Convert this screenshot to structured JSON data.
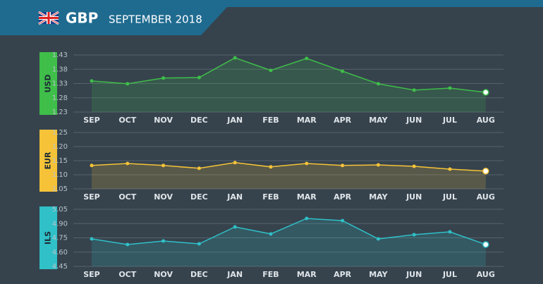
{
  "header": {
    "currency": "GBP",
    "date": "SEPTEMBER 2018"
  },
  "chart_data": [
    {
      "type": "line",
      "y_label": "USD",
      "color": "#3fbe4a",
      "categories": [
        "SEP",
        "OCT",
        "NOV",
        "DEC",
        "JAN",
        "FEB",
        "MAR",
        "APR",
        "MAY",
        "JUN",
        "JUL",
        "AUG"
      ],
      "values": [
        1.339,
        1.329,
        1.349,
        1.351,
        1.42,
        1.376,
        1.418,
        1.373,
        1.329,
        1.307,
        1.314,
        1.299
      ],
      "ylim": [
        1.23,
        1.43
      ],
      "yticks": [
        1.23,
        1.28,
        1.33,
        1.38,
        1.43
      ],
      "grid": true
    },
    {
      "type": "line",
      "y_label": "EUR",
      "color": "#f6c338",
      "categories": [
        "SEP",
        "OCT",
        "NOV",
        "DEC",
        "JAN",
        "FEB",
        "MAR",
        "APR",
        "MAY",
        "JUN",
        "JUL",
        "AUG"
      ],
      "values": [
        1.133,
        1.14,
        1.133,
        1.123,
        1.143,
        1.128,
        1.14,
        1.133,
        1.135,
        1.13,
        1.12,
        1.113
      ],
      "ylim": [
        1.05,
        1.25
      ],
      "yticks": [
        1.05,
        {
          "value": 1.1,
          "label": "1.10"
        },
        1.15,
        {
          "value": 1.2,
          "label": "1.20"
        },
        1.25
      ],
      "grid": true
    },
    {
      "type": "line",
      "y_label": "ILS",
      "color": "#2fc0c8",
      "categories": [
        "SEP",
        "OCT",
        "NOV",
        "DEC",
        "JAN",
        "FEB",
        "MAR",
        "APR",
        "MAY",
        "JUN",
        "JUL",
        "AUG"
      ],
      "values": [
        4.739,
        4.68,
        4.717,
        4.687,
        4.865,
        4.791,
        4.954,
        4.931,
        4.739,
        4.783,
        4.813,
        4.68
      ],
      "ylim": [
        4.45,
        5.05
      ],
      "yticks": [
        4.45,
        {
          "value": 4.6,
          "label": "4.60"
        },
        4.75,
        {
          "value": 4.9,
          "label": "4.90"
        },
        5.05
      ],
      "grid": true
    }
  ]
}
